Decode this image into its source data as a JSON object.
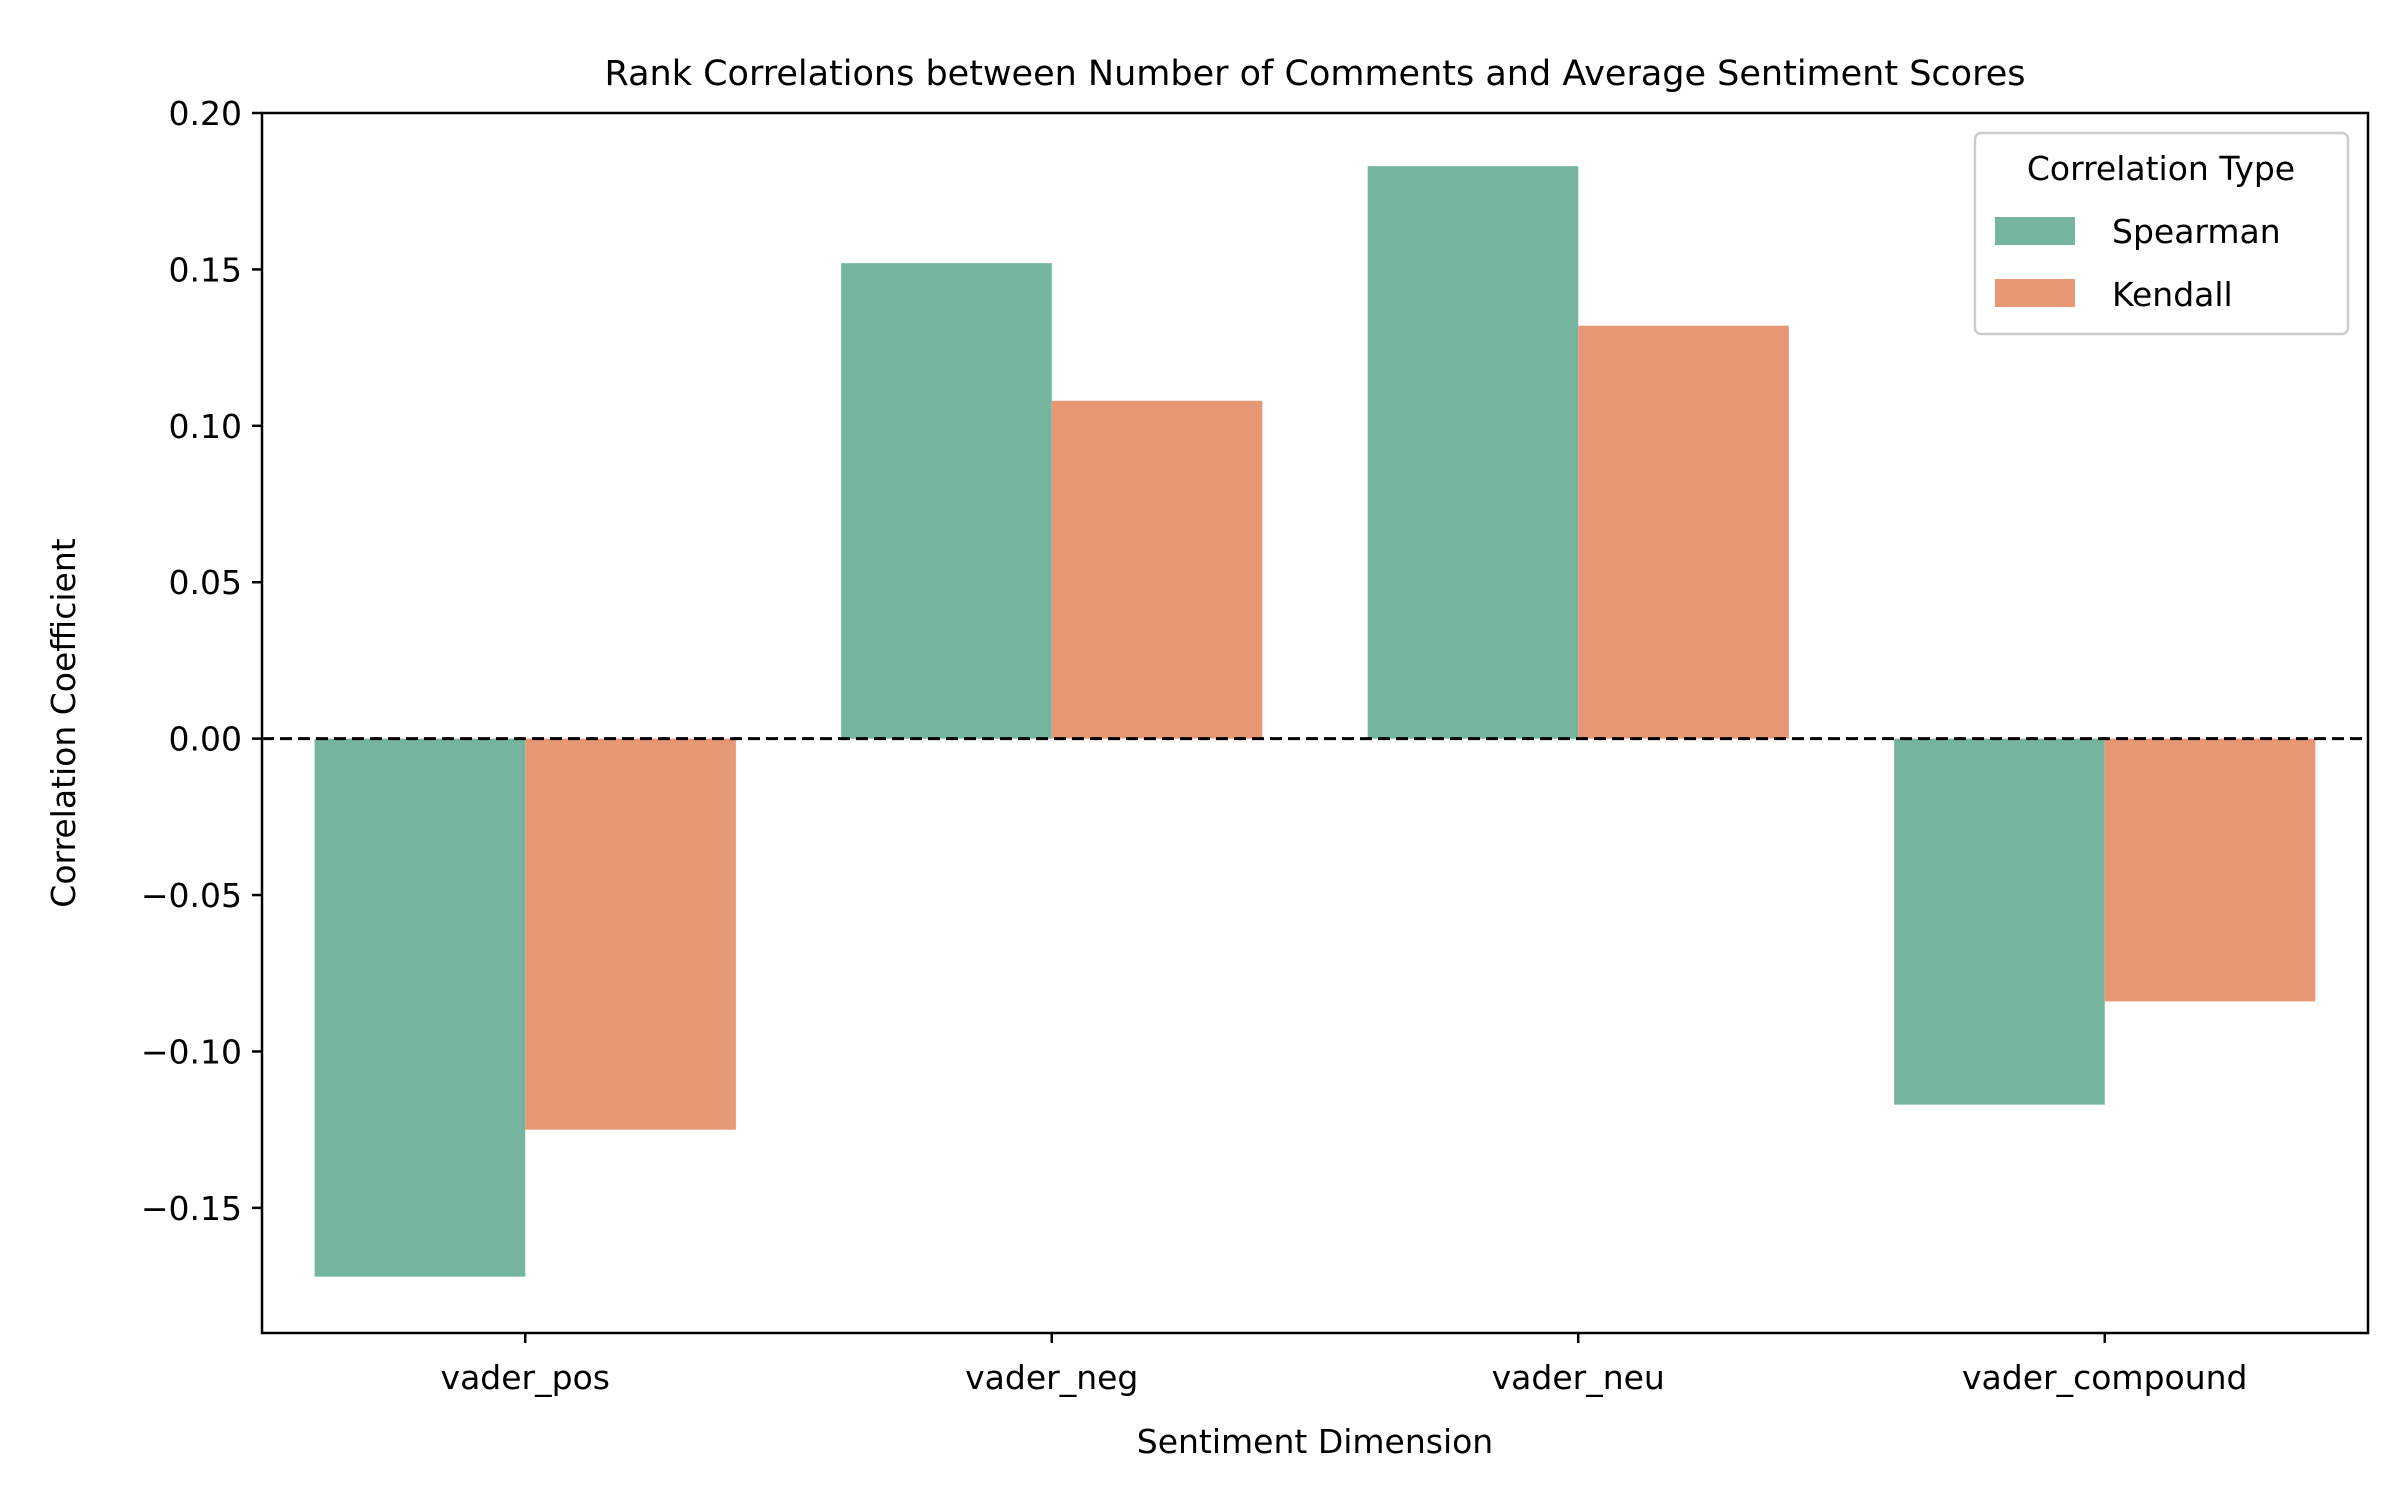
{
  "chart_data": {
    "type": "bar",
    "title": "Rank Correlations between Number of Comments and Average Sentiment Scores",
    "xlabel": "Sentiment Dimension",
    "ylabel": "Correlation Coefficient",
    "categories": [
      "vader_pos",
      "vader_neg",
      "vader_neu",
      "vader_compound"
    ],
    "series": [
      {
        "name": "Spearman",
        "color": "#75b5a0",
        "values": [
          -0.172,
          0.152,
          0.183,
          -0.117
        ]
      },
      {
        "name": "Kendall",
        "color": "#e89775",
        "values": [
          -0.125,
          0.108,
          0.132,
          -0.084
        ]
      }
    ],
    "ylim": [
      -0.19,
      0.2
    ],
    "yticks": [
      -0.15,
      -0.1,
      -0.05,
      0.0,
      0.05,
      0.1,
      0.15,
      0.2
    ],
    "ytick_labels": [
      "−0.15",
      "−0.10",
      "−0.05",
      "0.00",
      "0.05",
      "0.10",
      "0.15",
      "0.20"
    ],
    "reference_line": {
      "y": 0,
      "style": "dashed"
    },
    "legend": {
      "title": "Correlation Type",
      "position": "top-right"
    },
    "grid": false
  }
}
